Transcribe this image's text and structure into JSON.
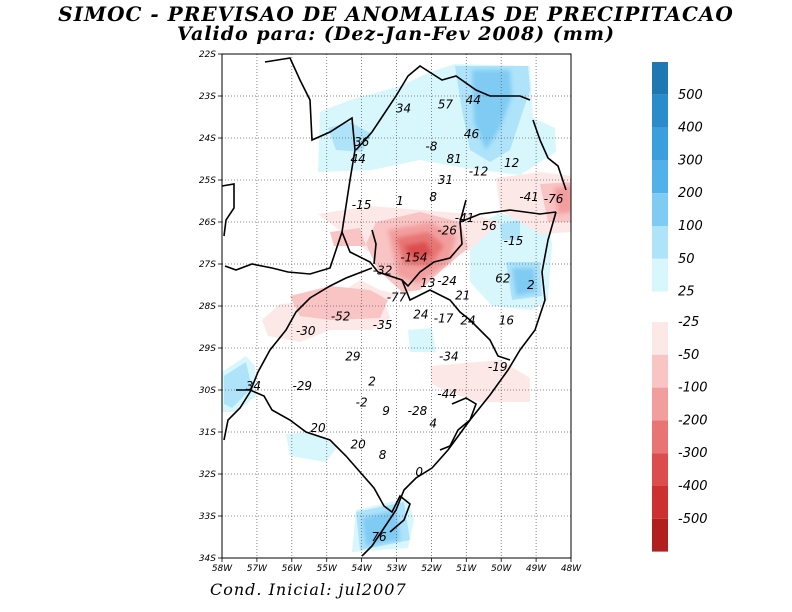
{
  "title_line1": "SIMOC - PREVISAO DE ANOMALIAS DE PRECIPITACAO",
  "title_line2": "Valido para: (Dez-Jan-Fev 2008) (mm)",
  "footer": "Cond. Inicial: jul2007",
  "map": {
    "lat_labels": [
      "22S",
      "23S",
      "24S",
      "25S",
      "26S",
      "27S",
      "28S",
      "29S",
      "30S",
      "31S",
      "32S",
      "33S",
      "34S"
    ],
    "lon_labels": [
      "58W",
      "57W",
      "56W",
      "55W",
      "54W",
      "53W",
      "52W",
      "51W",
      "50W",
      "49W",
      "48W"
    ],
    "lat_range": [
      -34,
      -22
    ],
    "lon_range": [
      -58,
      -48
    ],
    "grid": "dotted",
    "values": [
      {
        "lon": -52.8,
        "lat": -23.3,
        "text": "34"
      },
      {
        "lon": -51.6,
        "lat": -23.2,
        "text": "57"
      },
      {
        "lon": -50.8,
        "lat": -23.1,
        "text": "44"
      },
      {
        "lon": -50.85,
        "lat": -23.9,
        "text": "46"
      },
      {
        "lon": -54.0,
        "lat": -24.1,
        "text": "36"
      },
      {
        "lon": -54.1,
        "lat": -24.5,
        "text": "44"
      },
      {
        "lon": -52.0,
        "lat": -24.2,
        "text": "-8"
      },
      {
        "lon": -51.35,
        "lat": -24.5,
        "text": "81"
      },
      {
        "lon": -49.7,
        "lat": -24.6,
        "text": "12"
      },
      {
        "lon": -50.65,
        "lat": -24.8,
        "text": "-12"
      },
      {
        "lon": -51.6,
        "lat": -25.0,
        "text": "31"
      },
      {
        "lon": -51.95,
        "lat": -25.4,
        "text": "8"
      },
      {
        "lon": -49.2,
        "lat": -25.4,
        "text": "-41"
      },
      {
        "lon": -48.5,
        "lat": -25.45,
        "text": "-76"
      },
      {
        "lon": -54.0,
        "lat": -25.6,
        "text": "-15"
      },
      {
        "lon": -52.9,
        "lat": -25.5,
        "text": "1"
      },
      {
        "lon": -51.05,
        "lat": -25.9,
        "text": "-41"
      },
      {
        "lon": -50.35,
        "lat": -26.1,
        "text": "56"
      },
      {
        "lon": -51.55,
        "lat": -26.2,
        "text": "-26"
      },
      {
        "lon": -49.65,
        "lat": -26.45,
        "text": "-15"
      },
      {
        "lon": -52.5,
        "lat": -26.85,
        "text": "-154"
      },
      {
        "lon": -53.4,
        "lat": -27.15,
        "text": "-32"
      },
      {
        "lon": -49.95,
        "lat": -27.35,
        "text": "62"
      },
      {
        "lon": -49.15,
        "lat": -27.5,
        "text": "2"
      },
      {
        "lon": -52.1,
        "lat": -27.45,
        "text": "13"
      },
      {
        "lon": -51.55,
        "lat": -27.4,
        "text": "-24"
      },
      {
        "lon": -53.0,
        "lat": -27.8,
        "text": "-77"
      },
      {
        "lon": -51.1,
        "lat": -27.75,
        "text": "21"
      },
      {
        "lon": -54.6,
        "lat": -28.25,
        "text": "-52"
      },
      {
        "lon": -53.4,
        "lat": -28.45,
        "text": "-35"
      },
      {
        "lon": -52.3,
        "lat": -28.2,
        "text": "24"
      },
      {
        "lon": -51.65,
        "lat": -28.3,
        "text": "-17"
      },
      {
        "lon": -50.95,
        "lat": -28.35,
        "text": "24"
      },
      {
        "lon": -49.85,
        "lat": -28.35,
        "text": "16"
      },
      {
        "lon": -55.6,
        "lat": -28.6,
        "text": "-30"
      },
      {
        "lon": -54.25,
        "lat": -29.2,
        "text": "29"
      },
      {
        "lon": -51.5,
        "lat": -29.2,
        "text": "-34"
      },
      {
        "lon": -50.1,
        "lat": -29.45,
        "text": "-19"
      },
      {
        "lon": -57.1,
        "lat": -29.9,
        "text": "34"
      },
      {
        "lon": -55.7,
        "lat": -29.9,
        "text": "-29"
      },
      {
        "lon": -53.7,
        "lat": -29.8,
        "text": "2"
      },
      {
        "lon": -51.55,
        "lat": -30.1,
        "text": "-44"
      },
      {
        "lon": -54.0,
        "lat": -30.3,
        "text": "-2"
      },
      {
        "lon": -53.3,
        "lat": -30.5,
        "text": "9"
      },
      {
        "lon": -52.4,
        "lat": -30.5,
        "text": "-28"
      },
      {
        "lon": -51.95,
        "lat": -30.8,
        "text": "4"
      },
      {
        "lon": -55.25,
        "lat": -30.9,
        "text": "20"
      },
      {
        "lon": -54.1,
        "lat": -31.3,
        "text": "20"
      },
      {
        "lon": -53.4,
        "lat": -31.55,
        "text": "8"
      },
      {
        "lon": -52.35,
        "lat": -31.95,
        "text": "0"
      },
      {
        "lon": -53.5,
        "lat": -33.5,
        "text": "76"
      }
    ]
  },
  "colorbar": {
    "positive": [
      {
        "label": "500",
        "color": "#1f77b4"
      },
      {
        "label": "400",
        "color": "#2a8ccb"
      },
      {
        "label": "300",
        "color": "#3a9fdc"
      },
      {
        "label": "200",
        "color": "#52b1ea"
      },
      {
        "label": "100",
        "color": "#7fcbf4"
      },
      {
        "label": "50",
        "color": "#aee3fa"
      },
      {
        "label": "25",
        "color": "#d8f7fd"
      }
    ],
    "negative": [
      {
        "label": "-25",
        "color": "#fde8e8"
      },
      {
        "label": "-50",
        "color": "#f9c4c4"
      },
      {
        "label": "-100",
        "color": "#f29e9e"
      },
      {
        "label": "-200",
        "color": "#e87474"
      },
      {
        "label": "-300",
        "color": "#dc4d4d"
      },
      {
        "label": "-400",
        "color": "#cc3030"
      },
      {
        "label": "-500",
        "color": "#b21f1f"
      }
    ]
  }
}
